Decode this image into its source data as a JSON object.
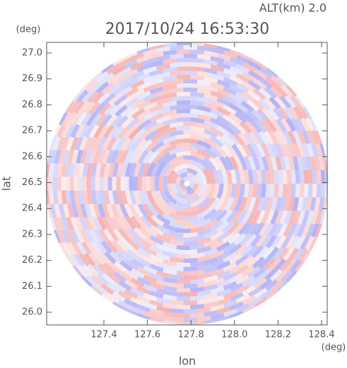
{
  "chart_data": {
    "type": "radar-ppi",
    "title": "2017/10/24 16:53:30",
    "altitude_label": "ALT(km) 2.0",
    "x_label": "lon",
    "y_label": "lat",
    "x_unit": "(deg)",
    "y_unit": "(deg)",
    "xlim": [
      127.137,
      128.426
    ],
    "ylim": [
      25.951,
      27.041
    ],
    "xticks": [
      127.4,
      127.6,
      127.8,
      {
        "value": 128.0,
        "label": "128.0"
      },
      128.2,
      128.4
    ],
    "yticks": [
      {
        "value": 26.0,
        "label": "26.0"
      },
      26.1,
      26.2,
      26.3,
      26.4,
      26.5,
      26.6,
      26.7,
      26.8,
      26.9,
      {
        "value": 27.0,
        "label": "27.0"
      }
    ],
    "colors": {
      "positive": "#f08a8a",
      "negative": "#8a8af0"
    }
  }
}
